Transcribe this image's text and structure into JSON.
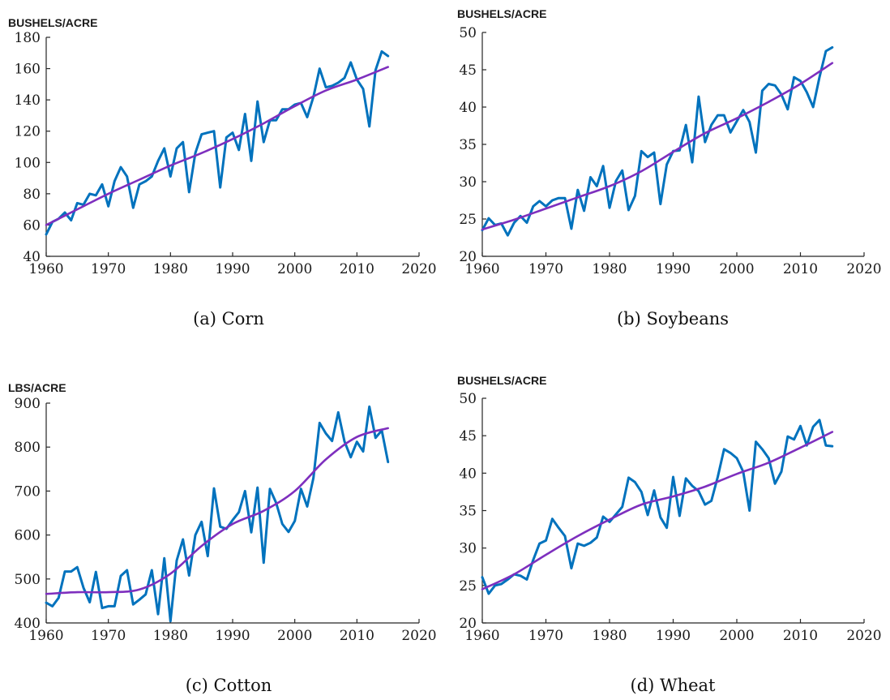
{
  "colors": {
    "actual": "#0072BD",
    "trend": "#7E2FBE"
  },
  "chart_data": [
    {
      "type": "line",
      "caption": "(a) Corn",
      "ylabel": "BUSHELS/ACRE",
      "xlim": [
        1960,
        2020
      ],
      "ylim": [
        40,
        180
      ],
      "xticks": [
        1960,
        1970,
        1980,
        1990,
        2000,
        2010,
        2020
      ],
      "yticks": [
        40,
        60,
        80,
        100,
        120,
        140,
        160,
        180
      ],
      "series": [
        {
          "x": [
            1960,
            1961,
            1962,
            1963,
            1964,
            1965,
            1966,
            1967,
            1968,
            1969,
            1970,
            1971,
            1972,
            1973,
            1974,
            1975,
            1976,
            1977,
            1978,
            1979,
            1980,
            1981,
            1982,
            1983,
            1984,
            1985,
            1986,
            1987,
            1988,
            1989,
            1990,
            1991,
            1992,
            1993,
            1994,
            1995,
            1996,
            1997,
            1998,
            1999,
            2000,
            2001,
            2002,
            2003,
            2004,
            2005,
            2006,
            2007,
            2008,
            2009,
            2010,
            2011,
            2012,
            2013,
            2014,
            2015
          ],
          "values": [
            54,
            62,
            64,
            68,
            63,
            74,
            73,
            80,
            79,
            86,
            72,
            88,
            97,
            91,
            71,
            86,
            88,
            91,
            101,
            109,
            91,
            109,
            113,
            81,
            106,
            118,
            119,
            120,
            84,
            116,
            119,
            108,
            131,
            101,
            139,
            113,
            127,
            127,
            134,
            134,
            137,
            138,
            129,
            142,
            160,
            148,
            149,
            151,
            154,
            164,
            153,
            147,
            123,
            159,
            171,
            168
          ]
        },
        {
          "x": [
            1960,
            1965,
            1970,
            1975,
            1980,
            1985,
            1990,
            1995,
            2000,
            2005,
            2010,
            2015
          ],
          "values": [
            60,
            70,
            80,
            89,
            98,
            106,
            115,
            125,
            136,
            146,
            153,
            161
          ]
        }
      ]
    },
    {
      "type": "line",
      "caption": "(b) Soybeans",
      "ylabel": "BUSHELS/ACRE",
      "xlim": [
        1960,
        2020
      ],
      "ylim": [
        20,
        50
      ],
      "xticks": [
        1960,
        1970,
        1980,
        1990,
        2000,
        2010,
        2020
      ],
      "yticks": [
        20,
        25,
        30,
        35,
        40,
        45,
        50
      ],
      "series": [
        {
          "x": [
            1960,
            1961,
            1962,
            1963,
            1964,
            1965,
            1966,
            1967,
            1968,
            1969,
            1970,
            1971,
            1972,
            1973,
            1974,
            1975,
            1976,
            1977,
            1978,
            1979,
            1980,
            1981,
            1982,
            1983,
            1984,
            1985,
            1986,
            1987,
            1988,
            1989,
            1990,
            1991,
            1992,
            1993,
            1994,
            1995,
            1996,
            1997,
            1998,
            1999,
            2000,
            2001,
            2002,
            2003,
            2004,
            2005,
            2006,
            2007,
            2008,
            2009,
            2010,
            2011,
            2012,
            2013,
            2014,
            2015
          ],
          "values": [
            23.5,
            25.1,
            24.2,
            24.4,
            22.8,
            24.5,
            25.4,
            24.5,
            26.7,
            27.4,
            26.7,
            27.5,
            27.8,
            27.8,
            23.7,
            28.9,
            26.1,
            30.6,
            29.4,
            32.1,
            26.5,
            30.1,
            31.5,
            26.2,
            28.1,
            34.1,
            33.3,
            33.9,
            27,
            32.3,
            34.1,
            34.2,
            37.6,
            32.6,
            41.4,
            35.3,
            37.6,
            38.9,
            38.9,
            36.6,
            38.1,
            39.6,
            38,
            33.9,
            42.2,
            43.1,
            42.9,
            41.7,
            39.7,
            44,
            43.5,
            42,
            40,
            44,
            47.5,
            48
          ]
        },
        {
          "x": [
            1960,
            1965,
            1970,
            1975,
            1980,
            1985,
            1990,
            1995,
            2000,
            2005,
            2010,
            2015
          ],
          "values": [
            23.6,
            24.9,
            26.4,
            27.9,
            29.4,
            31.4,
            34,
            36.5,
            38.5,
            40.7,
            43.1,
            45.9
          ]
        }
      ]
    },
    {
      "type": "line",
      "caption": "(c) Cotton",
      "ylabel": "LBS/ACRE",
      "xlim": [
        1960,
        2020
      ],
      "ylim": [
        400,
        900
      ],
      "xticks": [
        1960,
        1970,
        1980,
        1990,
        2000,
        2010,
        2020
      ],
      "yticks": [
        400,
        500,
        600,
        700,
        800,
        900
      ],
      "series": [
        {
          "x": [
            1960,
            1961,
            1962,
            1963,
            1964,
            1965,
            1966,
            1967,
            1968,
            1969,
            1970,
            1971,
            1972,
            1973,
            1974,
            1975,
            1976,
            1977,
            1978,
            1979,
            1980,
            1981,
            1982,
            1983,
            1984,
            1985,
            1986,
            1987,
            1988,
            1989,
            1990,
            1991,
            1992,
            1993,
            1994,
            1995,
            1996,
            1997,
            1998,
            1999,
            2000,
            2001,
            2002,
            2003,
            2004,
            2005,
            2006,
            2007,
            2008,
            2009,
            2010,
            2011,
            2012,
            2013,
            2014,
            2015
          ],
          "values": [
            446,
            438,
            457,
            517,
            517,
            527,
            480,
            447,
            516,
            434,
            438,
            438,
            507,
            520,
            442,
            453,
            465,
            520,
            420,
            547,
            404,
            542,
            590,
            508,
            600,
            630,
            552,
            706,
            619,
            614,
            634,
            652,
            700,
            606,
            708,
            537,
            705,
            673,
            625,
            607,
            632,
            705,
            665,
            730,
            855,
            831,
            814,
            879,
            813,
            777,
            812,
            790,
            892,
            821,
            838,
            766
          ]
        },
        {
          "x": [
            1960,
            1965,
            1970,
            1975,
            1980,
            1985,
            1990,
            1995,
            2000,
            2005,
            2010,
            2015
          ],
          "values": [
            466,
            470,
            470,
            476,
            512,
            575,
            625,
            655,
            700,
            772,
            823,
            843
          ]
        }
      ]
    },
    {
      "type": "line",
      "caption": "(d) Wheat",
      "ylabel": "BUSHELS/ACRE",
      "xlim": [
        1960,
        2020
      ],
      "ylim": [
        20,
        50
      ],
      "xticks": [
        1960,
        1970,
        1980,
        1990,
        2000,
        2010,
        2020
      ],
      "yticks": [
        20,
        25,
        30,
        35,
        40,
        45,
        50
      ],
      "series": [
        {
          "x": [
            1960,
            1961,
            1962,
            1963,
            1964,
            1965,
            1966,
            1967,
            1968,
            1969,
            1970,
            1971,
            1972,
            1973,
            1974,
            1975,
            1976,
            1977,
            1978,
            1979,
            1980,
            1981,
            1982,
            1983,
            1984,
            1985,
            1986,
            1987,
            1988,
            1989,
            1990,
            1991,
            1992,
            1993,
            1994,
            1995,
            1996,
            1997,
            1998,
            1999,
            2000,
            2001,
            2002,
            2003,
            2004,
            2005,
            2006,
            2007,
            2008,
            2009,
            2010,
            2011,
            2012,
            2013,
            2014,
            2015
          ],
          "values": [
            26.1,
            23.9,
            25,
            25.2,
            25.8,
            26.5,
            26.3,
            25.8,
            28.4,
            30.6,
            31,
            33.9,
            32.7,
            31.6,
            27.3,
            30.6,
            30.3,
            30.7,
            31.4,
            34.2,
            33.5,
            34.5,
            35.5,
            39.4,
            38.8,
            37.5,
            34.4,
            37.7,
            34.1,
            32.7,
            39.5,
            34.3,
            39.3,
            38.3,
            37.6,
            35.8,
            36.3,
            39.5,
            43.2,
            42.7,
            42,
            40.2,
            35,
            44.2,
            43.2,
            42,
            38.6,
            40.2,
            44.9,
            44.5,
            46.3,
            43.7,
            46.2,
            47.1,
            43.7,
            43.6
          ]
        },
        {
          "x": [
            1960,
            1965,
            1970,
            1975,
            1980,
            1985,
            1990,
            1995,
            2000,
            2005,
            2010,
            2015
          ],
          "values": [
            24.5,
            26.5,
            29.1,
            31.6,
            33.8,
            35.8,
            36.9,
            38.2,
            39.9,
            41.4,
            43.4,
            45.5
          ]
        }
      ]
    }
  ]
}
